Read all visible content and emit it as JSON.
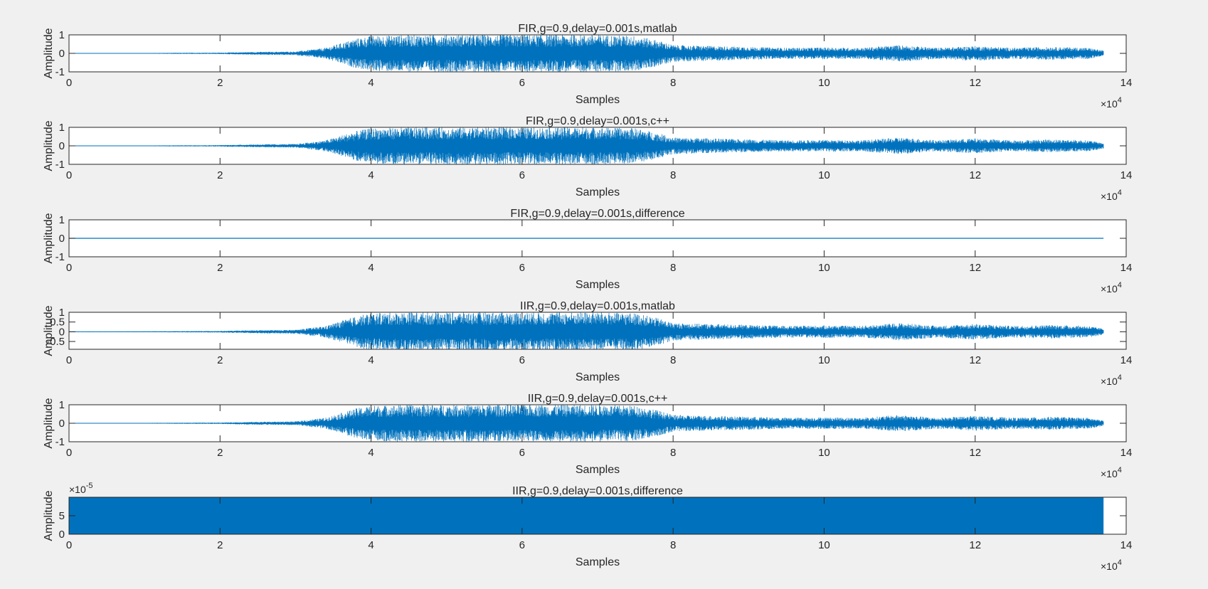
{
  "figure": {
    "background": "#f0f0f0",
    "axes_background": "#ffffff",
    "line_color": "#0072bd"
  },
  "chart_data": [
    {
      "type": "line",
      "title": "FIR,g=0.9,delay=0.001s,matlab",
      "xlabel": "Samples",
      "ylabel": "Amplitude",
      "xlim": [
        0,
        140000
      ],
      "ylim": [
        -1,
        1
      ],
      "xticks": [
        0,
        20000,
        40000,
        60000,
        80000,
        100000,
        120000,
        140000
      ],
      "xtick_labels": [
        "0",
        "2",
        "4",
        "6",
        "8",
        "10",
        "12",
        "14"
      ],
      "x_exponent_label": "×10",
      "x_exponent": "4",
      "yticks": [
        -1,
        0,
        1
      ],
      "ytick_labels": [
        "-1",
        "0",
        "1"
      ],
      "y_exponent_label": "",
      "y_exponent": "",
      "signal": "audio",
      "series": [
        {
          "x_end": 137000,
          "envelope_x": [
            0,
            10000,
            20000,
            25000,
            30000,
            32000,
            34000,
            36000,
            38000,
            40000,
            45000,
            50000,
            55000,
            60000,
            65000,
            70000,
            75000,
            78000,
            80000,
            85000,
            90000,
            95000,
            100000,
            105000,
            110000,
            115000,
            120000,
            125000,
            130000,
            135000,
            137000
          ],
          "envelope_y": [
            0.01,
            0.02,
            0.04,
            0.08,
            0.1,
            0.2,
            0.3,
            0.55,
            0.8,
            0.95,
            1.0,
            1.0,
            1.0,
            1.0,
            1.0,
            1.0,
            0.95,
            0.7,
            0.45,
            0.4,
            0.35,
            0.3,
            0.32,
            0.3,
            0.45,
            0.3,
            0.4,
            0.3,
            0.35,
            0.3,
            0.15
          ]
        }
      ]
    },
    {
      "type": "line",
      "title": "FIR,g=0.9,delay=0.001s,c++",
      "xlabel": "Samples",
      "ylabel": "Amplitude",
      "xlim": [
        0,
        140000
      ],
      "ylim": [
        -1,
        1
      ],
      "xticks": [
        0,
        20000,
        40000,
        60000,
        80000,
        100000,
        120000,
        140000
      ],
      "xtick_labels": [
        "0",
        "2",
        "4",
        "6",
        "8",
        "10",
        "12",
        "14"
      ],
      "x_exponent_label": "×10",
      "x_exponent": "4",
      "yticks": [
        -1,
        0,
        1
      ],
      "ytick_labels": [
        "-1",
        "0",
        "1"
      ],
      "y_exponent_label": "",
      "y_exponent": "",
      "signal": "audio",
      "series": [
        {
          "x_end": 137000,
          "envelope_x": [
            0,
            10000,
            20000,
            25000,
            30000,
            32000,
            34000,
            36000,
            38000,
            40000,
            45000,
            50000,
            55000,
            60000,
            65000,
            70000,
            75000,
            78000,
            80000,
            85000,
            90000,
            95000,
            100000,
            105000,
            110000,
            115000,
            120000,
            125000,
            130000,
            135000,
            137000
          ],
          "envelope_y": [
            0.01,
            0.02,
            0.04,
            0.08,
            0.1,
            0.2,
            0.3,
            0.55,
            0.8,
            0.95,
            1.0,
            1.0,
            1.0,
            1.0,
            1.0,
            1.0,
            0.95,
            0.7,
            0.45,
            0.4,
            0.35,
            0.3,
            0.32,
            0.3,
            0.45,
            0.3,
            0.4,
            0.3,
            0.35,
            0.3,
            0.15
          ]
        }
      ]
    },
    {
      "type": "line",
      "title": "FIR,g=0.9,delay=0.001s,difference",
      "xlabel": "Samples",
      "ylabel": "Amplitude",
      "xlim": [
        0,
        140000
      ],
      "ylim": [
        -1,
        1
      ],
      "xticks": [
        0,
        20000,
        40000,
        60000,
        80000,
        100000,
        120000,
        140000
      ],
      "xtick_labels": [
        "0",
        "2",
        "4",
        "6",
        "8",
        "10",
        "12",
        "14"
      ],
      "x_exponent_label": "×10",
      "x_exponent": "4",
      "yticks": [
        -1,
        0,
        1
      ],
      "ytick_labels": [
        "-1",
        "0",
        "1"
      ],
      "y_exponent_label": "",
      "y_exponent": "",
      "signal": "flat",
      "series": [
        {
          "x_end": 137000,
          "value": 0
        }
      ]
    },
    {
      "type": "line",
      "title": "IIR,g=0.9,delay=0.001s,matlab",
      "xlabel": "Samples",
      "ylabel": "Amplitude",
      "xlim": [
        0,
        140000
      ],
      "ylim": [
        -0.9,
        1
      ],
      "xticks": [
        0,
        20000,
        40000,
        60000,
        80000,
        100000,
        120000,
        140000
      ],
      "xtick_labels": [
        "0",
        "2",
        "4",
        "6",
        "8",
        "10",
        "12",
        "14"
      ],
      "x_exponent_label": "×10",
      "x_exponent": "4",
      "yticks": [
        -0.5,
        0,
        0.5,
        1
      ],
      "ytick_labels": [
        "-0.5",
        "0",
        "0.5",
        "1"
      ],
      "y_exponent_label": "",
      "y_exponent": "",
      "signal": "audio",
      "series": [
        {
          "x_end": 137000,
          "envelope_x": [
            0,
            10000,
            20000,
            25000,
            30000,
            32000,
            34000,
            36000,
            38000,
            40000,
            45000,
            50000,
            55000,
            60000,
            65000,
            70000,
            75000,
            78000,
            80000,
            85000,
            90000,
            95000,
            100000,
            105000,
            110000,
            115000,
            120000,
            125000,
            130000,
            135000,
            137000
          ],
          "envelope_y": [
            0.01,
            0.02,
            0.04,
            0.08,
            0.1,
            0.2,
            0.3,
            0.55,
            0.8,
            0.95,
            1.0,
            1.0,
            1.0,
            1.0,
            1.0,
            1.0,
            0.95,
            0.7,
            0.45,
            0.4,
            0.35,
            0.3,
            0.32,
            0.3,
            0.45,
            0.3,
            0.4,
            0.3,
            0.35,
            0.3,
            0.15
          ]
        }
      ]
    },
    {
      "type": "line",
      "title": "IIR,g=0.9,delay=0.001s,c++",
      "xlabel": "Samples",
      "ylabel": "Amplitude",
      "xlim": [
        0,
        140000
      ],
      "ylim": [
        -1,
        1
      ],
      "xticks": [
        0,
        20000,
        40000,
        60000,
        80000,
        100000,
        120000,
        140000
      ],
      "xtick_labels": [
        "0",
        "2",
        "4",
        "6",
        "8",
        "10",
        "12",
        "14"
      ],
      "x_exponent_label": "×10",
      "x_exponent": "4",
      "yticks": [
        -1,
        0,
        1
      ],
      "ytick_labels": [
        "-1",
        "0",
        "1"
      ],
      "y_exponent_label": "",
      "y_exponent": "",
      "signal": "audio",
      "series": [
        {
          "x_end": 137000,
          "envelope_x": [
            0,
            10000,
            20000,
            25000,
            30000,
            32000,
            34000,
            36000,
            38000,
            40000,
            45000,
            50000,
            55000,
            60000,
            65000,
            70000,
            75000,
            78000,
            80000,
            85000,
            90000,
            95000,
            100000,
            105000,
            110000,
            115000,
            120000,
            125000,
            130000,
            135000,
            137000
          ],
          "envelope_y": [
            0.01,
            0.02,
            0.04,
            0.08,
            0.1,
            0.2,
            0.3,
            0.55,
            0.8,
            0.95,
            1.0,
            1.0,
            1.0,
            1.0,
            1.0,
            1.0,
            0.95,
            0.7,
            0.45,
            0.4,
            0.35,
            0.3,
            0.32,
            0.3,
            0.45,
            0.3,
            0.4,
            0.3,
            0.35,
            0.3,
            0.15
          ]
        }
      ]
    },
    {
      "type": "line",
      "title": "IIR,g=0.9,delay=0.001s,difference",
      "xlabel": "Samples",
      "ylabel": "Amplitude",
      "xlim": [
        0,
        140000
      ],
      "ylim": [
        0,
        10
      ],
      "xticks": [
        0,
        20000,
        40000,
        60000,
        80000,
        100000,
        120000,
        140000
      ],
      "xtick_labels": [
        "0",
        "2",
        "4",
        "6",
        "8",
        "10",
        "12",
        "14"
      ],
      "x_exponent_label": "×10",
      "x_exponent": "4",
      "yticks": [
        0,
        5
      ],
      "ytick_labels": [
        "0",
        "5"
      ],
      "y_exponent_label": "×10",
      "y_exponent": "-5",
      "signal": "noise",
      "series": [
        {
          "x_end": 137000,
          "range": [
            0,
            10
          ]
        }
      ]
    }
  ]
}
